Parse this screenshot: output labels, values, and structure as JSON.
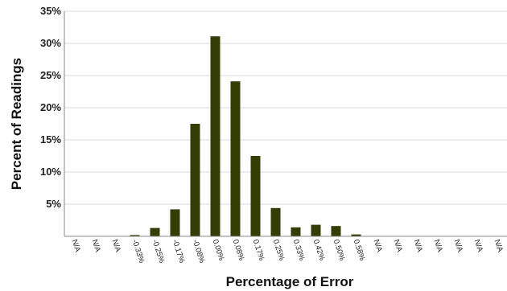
{
  "chart_data": {
    "type": "bar",
    "title": "",
    "xlabel": "Percentage of Error",
    "ylabel": "Percent of Readings",
    "ylim": [
      0,
      35
    ],
    "yticks": [
      "5%",
      "10%",
      "15%",
      "20%",
      "25%",
      "30%",
      "35%"
    ],
    "ytick_values": [
      5,
      10,
      15,
      20,
      25,
      30,
      35
    ],
    "grid": "horizontal",
    "bar_color": "#333d05",
    "categories": [
      "N/A",
      "N/A",
      "N/A",
      "-0.33%",
      "-0.25%",
      "-0.17%",
      "-0.08%",
      "0.00%",
      "0.08%",
      "0.17%",
      "0.25%",
      "0.33%",
      "0.42%",
      "0.50%",
      "0.58%",
      "N/A",
      "N/A",
      "N/A",
      "N/A",
      "N/A",
      "N/A",
      "N/A"
    ],
    "values": [
      0,
      0,
      0,
      0.2,
      1.3,
      4.2,
      17.5,
      31.1,
      24.1,
      12.5,
      4.4,
      1.4,
      1.8,
      1.6,
      0.3,
      0,
      0,
      0,
      0,
      0,
      0,
      0
    ]
  }
}
